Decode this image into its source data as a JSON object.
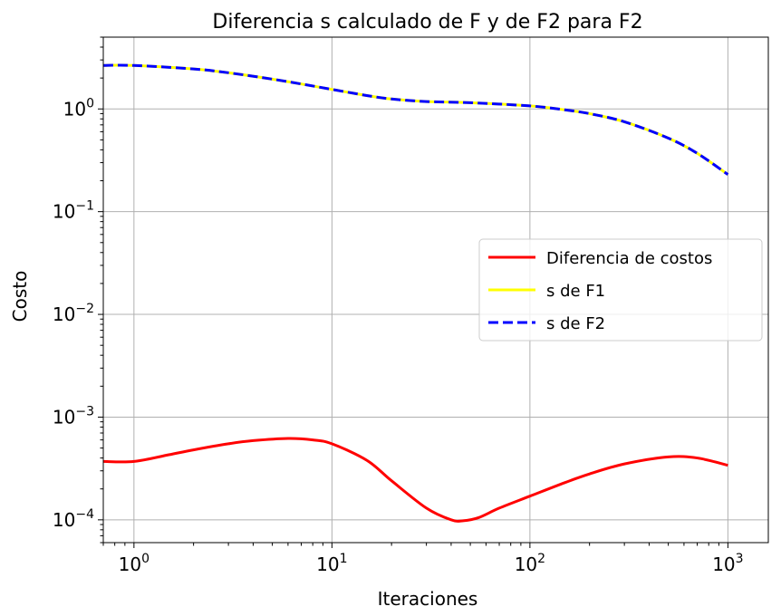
{
  "chart_data": {
    "type": "line",
    "title": "Diferencia s calculado de F y de F2 para F2",
    "xlabel": "Iteraciones",
    "ylabel": "Costo",
    "xscale": "log",
    "yscale": "log",
    "xlim": [
      0.7,
      1600
    ],
    "ylim": [
      6e-05,
      5
    ],
    "grid": true,
    "legend_position": "center-right",
    "x_ticks": [
      {
        "value": 1,
        "base": "10",
        "exp": "0"
      },
      {
        "value": 10,
        "base": "10",
        "exp": "1"
      },
      {
        "value": 100,
        "base": "10",
        "exp": "2"
      },
      {
        "value": 1000,
        "base": "10",
        "exp": "3"
      }
    ],
    "y_ticks": [
      {
        "value": 1,
        "base": "10",
        "exp": "0"
      },
      {
        "value": 0.1,
        "base": "10",
        "exp": "−1"
      },
      {
        "value": 0.01,
        "base": "10",
        "exp": "−2"
      },
      {
        "value": 0.001,
        "base": "10",
        "exp": "−3"
      },
      {
        "value": 0.0001,
        "base": "10",
        "exp": "−4"
      }
    ],
    "series": [
      {
        "name": "Diferencia de costos",
        "color": "#ff0000",
        "style": "solid",
        "x": [
          0.7,
          1,
          1.5,
          2,
          3,
          4,
          6,
          8,
          10,
          15,
          20,
          30,
          40,
          46,
          55,
          70,
          100,
          150,
          200,
          300,
          500,
          700,
          1000
        ],
        "y": [
          0.00037,
          0.00037,
          0.00043,
          0.00048,
          0.00055,
          0.00059,
          0.00062,
          0.0006,
          0.00055,
          0.00038,
          0.00024,
          0.00013,
          0.0001,
          9.8e-05,
          0.000105,
          0.00013,
          0.00017,
          0.00023,
          0.00028,
          0.00035,
          0.00041,
          0.0004,
          0.00034
        ]
      },
      {
        "name": "s de F1",
        "color": "#ffff00",
        "style": "solid",
        "x": [
          0.7,
          1,
          2,
          3,
          5,
          7,
          10,
          15,
          20,
          30,
          50,
          100,
          150,
          200,
          300,
          500,
          700,
          1000
        ],
        "y": [
          2.65,
          2.65,
          2.45,
          2.25,
          1.95,
          1.75,
          1.55,
          1.35,
          1.25,
          1.18,
          1.15,
          1.07,
          0.98,
          0.9,
          0.75,
          0.52,
          0.37,
          0.23
        ]
      },
      {
        "name": "s de F2",
        "color": "#0000ff",
        "style": "dashed",
        "x": [
          0.7,
          1,
          2,
          3,
          5,
          7,
          10,
          15,
          20,
          30,
          50,
          100,
          150,
          200,
          300,
          500,
          700,
          1000
        ],
        "y": [
          2.65,
          2.65,
          2.45,
          2.25,
          1.95,
          1.75,
          1.55,
          1.35,
          1.25,
          1.18,
          1.15,
          1.07,
          0.98,
          0.9,
          0.75,
          0.52,
          0.37,
          0.23
        ]
      }
    ]
  }
}
